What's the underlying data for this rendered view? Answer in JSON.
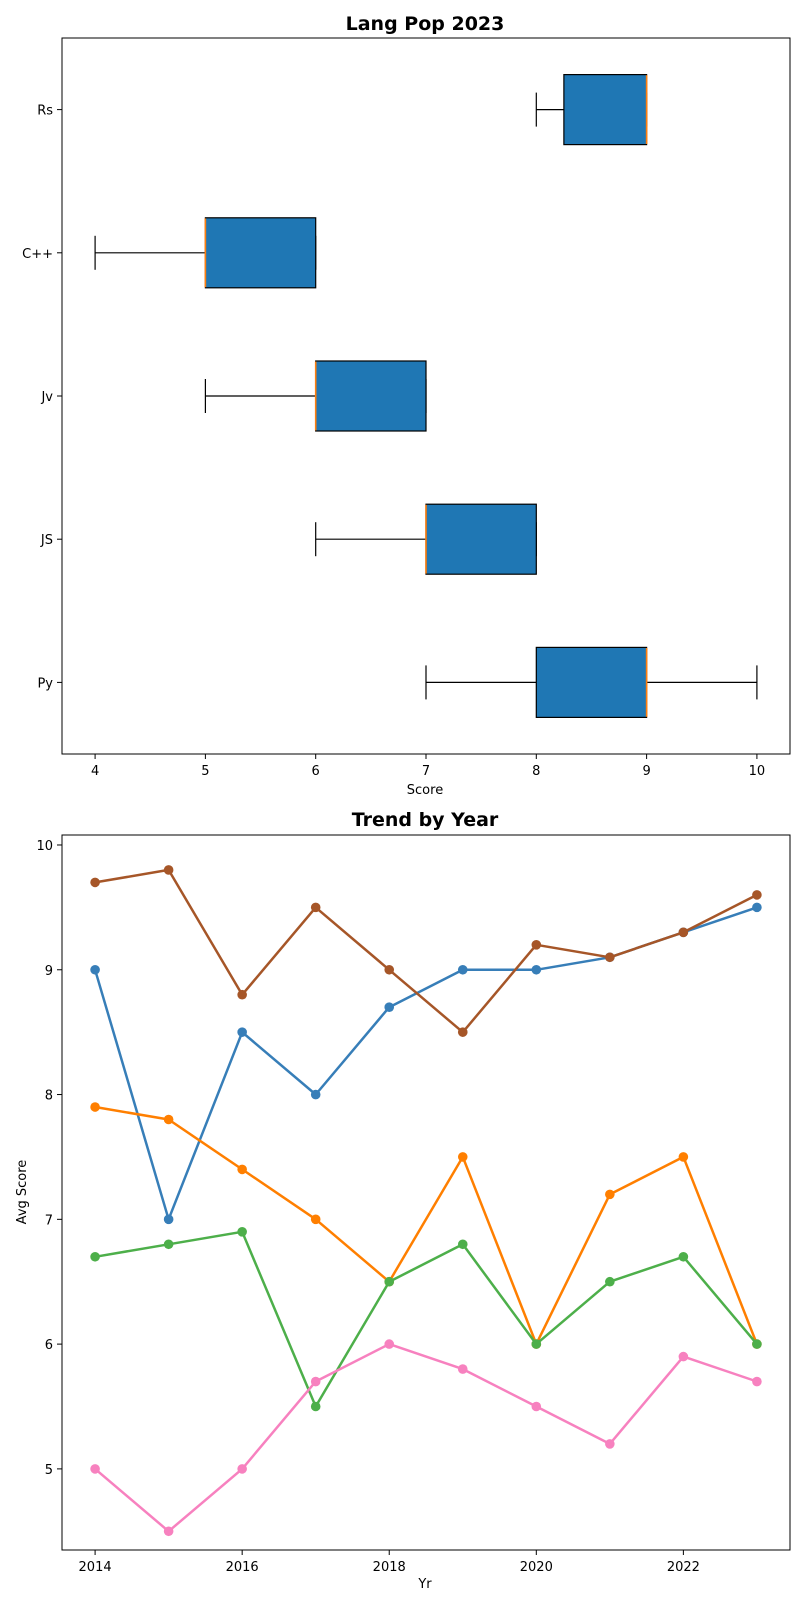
{
  "chart_data": [
    {
      "type": "box",
      "orientation": "horizontal",
      "title": "Lang Pop 2023",
      "xlabel": "Score",
      "ylabel": "",
      "xlim": [
        3.7,
        10.3
      ],
      "xticks": [
        4,
        5,
        6,
        7,
        8,
        9,
        10
      ],
      "categories": [
        "Py",
        "JS",
        "Jv",
        "C++",
        "Rs"
      ],
      "box_color": "#1f77b4",
      "median_color": "#ff7f0e",
      "grid": false,
      "boxes": [
        {
          "category": "Py",
          "whisker_low": 7,
          "q1": 8,
          "median": 9,
          "q3": 9,
          "whisker_high": 10
        },
        {
          "category": "JS",
          "whisker_low": 6,
          "q1": 7,
          "median": 7,
          "q3": 8,
          "whisker_high": 8
        },
        {
          "category": "Jv",
          "whisker_low": 5,
          "q1": 6,
          "median": 6,
          "q3": 7,
          "whisker_high": 7
        },
        {
          "category": "C++",
          "whisker_low": 4,
          "q1": 5,
          "median": 5,
          "q3": 6,
          "whisker_high": 6
        },
        {
          "category": "Rs",
          "whisker_low": 8,
          "q1": 8.25,
          "median": 9,
          "q3": 9,
          "whisker_high": 9
        }
      ]
    },
    {
      "type": "line",
      "title": "Trend by Year",
      "xlabel": "Yr",
      "ylabel": "Avg Score",
      "xlim": [
        2013.55,
        2023.45
      ],
      "ylim": [
        4.35,
        10.08
      ],
      "xticks": [
        2014,
        2016,
        2018,
        2020,
        2022
      ],
      "yticks": [
        5,
        6,
        7,
        8,
        9,
        10
      ],
      "grid": false,
      "legend": "none",
      "x": [
        2014,
        2015,
        2016,
        2017,
        2018,
        2019,
        2020,
        2021,
        2022,
        2023
      ],
      "series": [
        {
          "color": "#377eb8",
          "values": [
            9.0,
            7.0,
            8.5,
            8.0,
            8.7,
            9.0,
            9.0,
            9.1,
            9.3,
            9.5
          ]
        },
        {
          "color": "#ff7f00",
          "values": [
            7.9,
            7.8,
            7.4,
            7.0,
            6.5,
            7.5,
            6.0,
            7.2,
            7.5,
            6.0
          ]
        },
        {
          "color": "#4daf4a",
          "values": [
            6.7,
            6.8,
            6.9,
            5.5,
            6.5,
            6.8,
            6.0,
            6.5,
            6.7,
            6.0
          ]
        },
        {
          "color": "#f781bf",
          "values": [
            5.0,
            4.5,
            5.0,
            5.7,
            6.0,
            5.8,
            5.5,
            5.2,
            5.9,
            5.7
          ]
        },
        {
          "color": "#a65628",
          "values": [
            9.7,
            9.8,
            8.8,
            9.5,
            9.0,
            8.5,
            9.2,
            9.1,
            9.3,
            9.6
          ]
        }
      ]
    }
  ]
}
